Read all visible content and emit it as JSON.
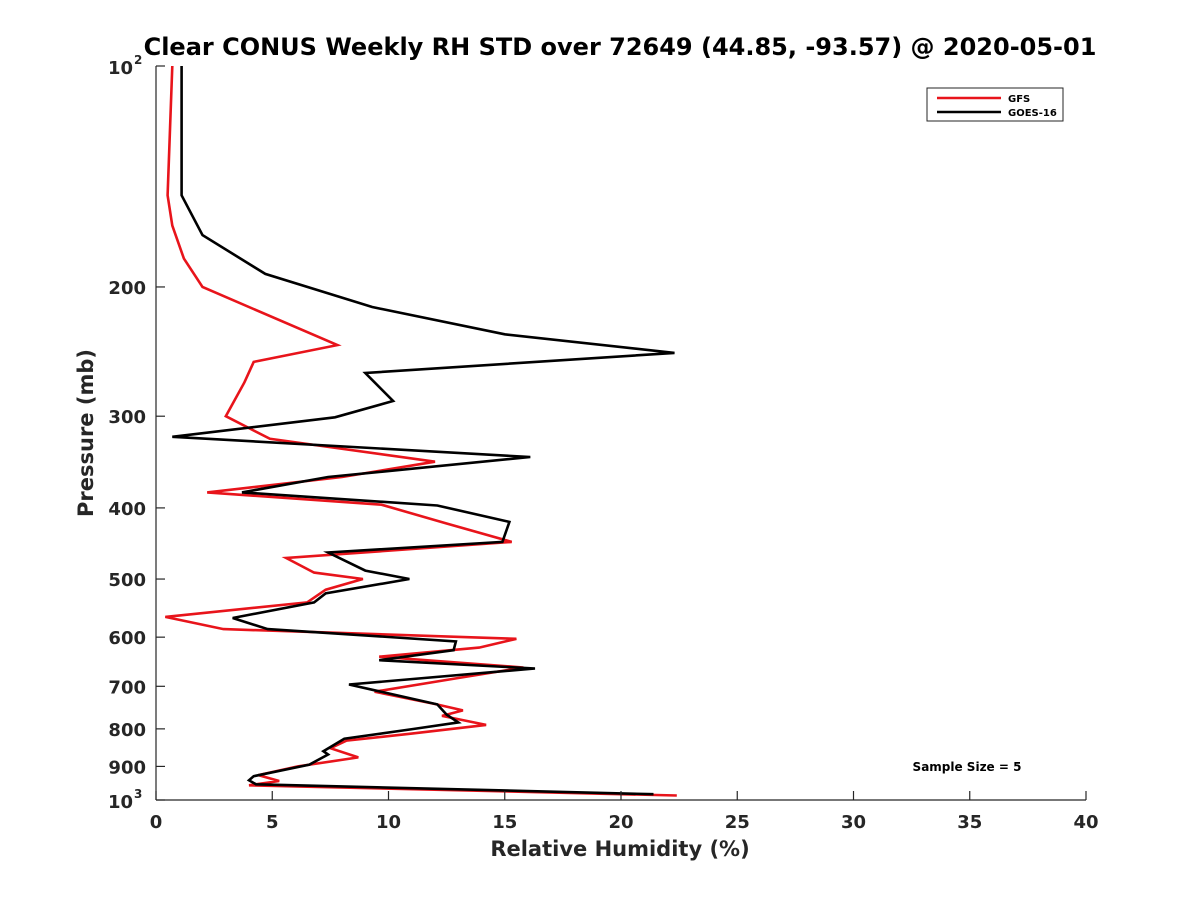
{
  "chart_data": {
    "type": "line",
    "title": "Clear CONUS Weekly RH STD over 72649 (44.85, -93.57) @ 2020-05-01",
    "xlabel": "Relative Humidity (%)",
    "ylabel": "Pressure (mb)",
    "xlim": [
      0,
      40
    ],
    "ylim": [
      100,
      1000
    ],
    "yscale": "log",
    "y_reversed": true,
    "grid": false,
    "legend_position": "top-right",
    "annotation": "Sample Size = 5",
    "x_ticks": [
      "0",
      "5",
      "10",
      "15",
      "20",
      "25",
      "30",
      "35",
      "40"
    ],
    "y_ticks": [
      {
        "value": 100,
        "label": "10",
        "sup": "2"
      },
      {
        "value": 200,
        "label": "200"
      },
      {
        "value": 300,
        "label": "300"
      },
      {
        "value": 400,
        "label": "400"
      },
      {
        "value": 500,
        "label": "500"
      },
      {
        "value": 600,
        "label": "600"
      },
      {
        "value": 700,
        "label": "700"
      },
      {
        "value": 800,
        "label": "800"
      },
      {
        "value": 900,
        "label": "900"
      },
      {
        "value": 1000,
        "label": "10",
        "sup": "3"
      }
    ],
    "series": [
      {
        "name": "GFS",
        "color": "#e8141b",
        "points": [
          [
            0.7,
            100
          ],
          [
            0.5,
            150
          ],
          [
            0.7,
            165
          ],
          [
            1.2,
            183
          ],
          [
            2.0,
            200
          ],
          [
            7.8,
            240
          ],
          [
            4.2,
            253
          ],
          [
            3.8,
            270
          ],
          [
            3.0,
            300
          ],
          [
            4.9,
            322
          ],
          [
            12.0,
            346
          ],
          [
            8.0,
            363
          ],
          [
            2.2,
            381
          ],
          [
            9.7,
            396
          ],
          [
            12.5,
            420
          ],
          [
            15.3,
            445
          ],
          [
            5.6,
            468
          ],
          [
            6.8,
            490
          ],
          [
            8.9,
            500
          ],
          [
            7.3,
            517
          ],
          [
            6.5,
            538
          ],
          [
            0.4,
            563
          ],
          [
            2.9,
            585
          ],
          [
            15.5,
            603
          ],
          [
            13.9,
            620
          ],
          [
            9.6,
            638
          ],
          [
            15.8,
            660
          ],
          [
            13.0,
            682
          ],
          [
            9.4,
            712
          ],
          [
            12.0,
            740
          ],
          [
            13.2,
            755
          ],
          [
            12.3,
            768
          ],
          [
            14.2,
            790
          ],
          [
            11.0,
            812
          ],
          [
            8.2,
            830
          ],
          [
            7.5,
            850
          ],
          [
            8.7,
            875
          ],
          [
            6.1,
            900
          ],
          [
            4.4,
            925
          ],
          [
            5.3,
            942
          ],
          [
            4.0,
            955
          ],
          [
            22.4,
            986
          ]
        ]
      },
      {
        "name": "GOES-16",
        "color": "#000000",
        "points": [
          [
            1.1,
            100
          ],
          [
            1.1,
            150
          ],
          [
            2.0,
            170
          ],
          [
            4.7,
            192
          ],
          [
            9.3,
            213
          ],
          [
            15.0,
            232
          ],
          [
            22.3,
            246
          ],
          [
            9.0,
            262
          ],
          [
            10.2,
            286
          ],
          [
            7.7,
            301
          ],
          [
            0.7,
            320
          ],
          [
            16.1,
            341
          ],
          [
            7.4,
            363
          ],
          [
            3.7,
            381
          ],
          [
            12.1,
            397
          ],
          [
            15.2,
            418
          ],
          [
            14.9,
            445
          ],
          [
            7.4,
            460
          ],
          [
            9.0,
            487
          ],
          [
            10.9,
            500
          ],
          [
            7.3,
            523
          ],
          [
            6.8,
            538
          ],
          [
            3.3,
            565
          ],
          [
            4.8,
            585
          ],
          [
            12.9,
            608
          ],
          [
            12.8,
            625
          ],
          [
            9.6,
            645
          ],
          [
            16.3,
            662
          ],
          [
            8.3,
            696
          ],
          [
            9.5,
            710
          ],
          [
            12.1,
            741
          ],
          [
            12.5,
            765
          ],
          [
            13.0,
            784
          ],
          [
            11.1,
            800
          ],
          [
            8.1,
            825
          ],
          [
            7.2,
            858
          ],
          [
            7.4,
            867
          ],
          [
            6.6,
            895
          ],
          [
            4.2,
            928
          ],
          [
            4.0,
            940
          ],
          [
            4.3,
            952
          ],
          [
            21.4,
            982
          ]
        ]
      }
    ]
  }
}
